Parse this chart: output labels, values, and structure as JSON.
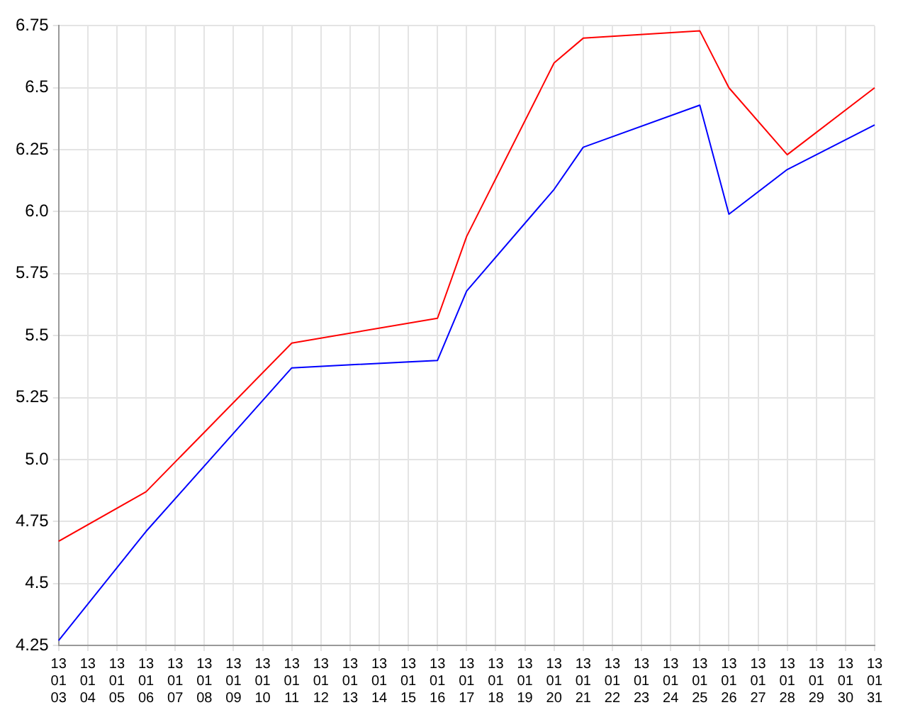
{
  "chart_data": {
    "type": "line",
    "categories": [
      "13 01 03",
      "13 01 04",
      "13 01 05",
      "13 01 06",
      "13 01 07",
      "13 01 08",
      "13 01 09",
      "13 01 10",
      "13 01 11",
      "13 01 12",
      "13 01 13",
      "13 01 14",
      "13 01 15",
      "13 01 16",
      "13 01 17",
      "13 01 18",
      "13 01 19",
      "13 01 20",
      "13 01 21",
      "13 01 22",
      "13 01 23",
      "13 01 24",
      "13 01 25",
      "13 01 26",
      "13 01 27",
      "13 01 28",
      "13 01 29",
      "13 01 30",
      "13 01 31"
    ],
    "series": [
      {
        "color": "#ff0000",
        "values": [
          4.67,
          null,
          null,
          4.87,
          null,
          null,
          null,
          null,
          5.47,
          null,
          null,
          null,
          null,
          5.57,
          5.9,
          null,
          null,
          6.6,
          6.7,
          null,
          null,
          null,
          6.73,
          6.5,
          null,
          6.23,
          null,
          null,
          6.5
        ]
      },
      {
        "color": "#0000ff",
        "values": [
          4.27,
          null,
          null,
          4.71,
          null,
          null,
          null,
          null,
          5.37,
          null,
          null,
          null,
          null,
          5.4,
          5.68,
          null,
          null,
          6.09,
          6.26,
          null,
          null,
          null,
          6.43,
          5.99,
          null,
          6.17,
          null,
          null,
          6.35
        ]
      }
    ],
    "ylim": [
      4.25,
      6.75
    ],
    "yticks": [
      4.25,
      {
        "value": 4.5,
        "label": "4.5"
      },
      4.75,
      {
        "value": 5,
        "label": "5.0"
      },
      5.25,
      {
        "value": 5.5,
        "label": "5.5"
      },
      5.75,
      {
        "value": 6,
        "label": "6.0"
      },
      6.25,
      {
        "value": 6.5,
        "label": "6.5"
      },
      6.75
    ],
    "grid": true,
    "legend": false,
    "marker": "none",
    "line_style": "solid"
  }
}
